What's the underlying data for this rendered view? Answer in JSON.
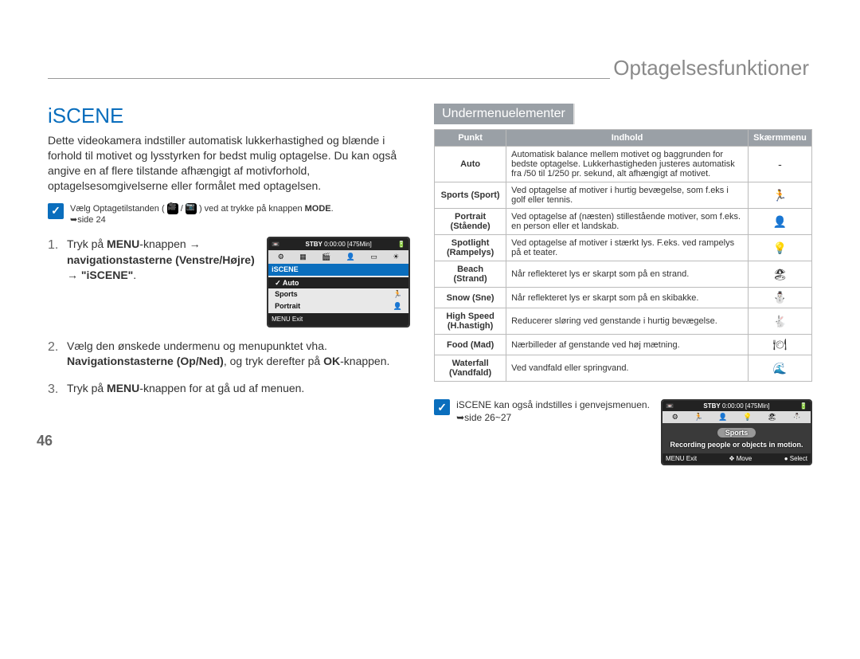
{
  "header": {
    "chapter": "Optagelsesfunktioner"
  },
  "section": {
    "title": "iSCENE",
    "intro": "Dette videokamera indstiller automatisk lukkerhastighed og blænde i forhold til motivet og lysstyrken for bedst mulig optagelse. Du kan også angive en af flere tilstande afhængigt af motivforhold, optagelsesomgivelserne eller formålet med optagelsen.",
    "precheck_pre": "Vælg Optagetilstanden (",
    "precheck_post": ") ved at trykke på knappen ",
    "precheck_mode": "MODE",
    "precheck_ref": "➥side 24"
  },
  "steps": {
    "s1a": "Tryk på ",
    "s1b": "MENU",
    "s1c": "-knappen ",
    "s1arrow": "→",
    "s1d": "navigationstasterne (Venstre/Højre)",
    "s1e": " → ",
    "s1f": "\"iSCENE\"",
    "s1g": ".",
    "s2a": "Vælg den ønskede undermenu og menupunktet vha.",
    "s2b": "Navigationstasterne (Op/Ned)",
    "s2c": ", og tryk derefter på ",
    "s2d": "OK",
    "s2e": "-knappen.",
    "s3a": "Tryk på ",
    "s3b": "MENU",
    "s3c": "-knappen for at gå ud af menuen."
  },
  "subheader": "Undermenuelementer",
  "table": {
    "headers": {
      "c1": "Punkt",
      "c2": "Indhold",
      "c3": "Skærmmenu"
    },
    "rows": [
      {
        "pt": "Auto",
        "desc": "Automatisk balance mellem motivet og baggrunden for bedste optagelse. Lukkerhastigheden justeres automatisk fra /50 til 1/250 pr. sekund, alt afhængigt af motivet.",
        "icon": "-"
      },
      {
        "pt": "Sports (Sport)",
        "desc": "Ved optagelse af motiver i hurtig bevægelse, som f.eks i golf eller tennis.",
        "icon": "🏃"
      },
      {
        "pt": "Portrait (Stående)",
        "desc": "Ved optagelse af (næsten) stillestående motiver, som f.eks. en person eller et landskab.",
        "icon": "👤"
      },
      {
        "pt": "Spotlight (Rampelys)",
        "desc": "Ved optagelse af motiver i stærkt lys. F.eks. ved rampelys på et teater.",
        "icon": "💡"
      },
      {
        "pt": "Beach (Strand)",
        "desc": "Når reflekteret lys er skarpt som på en strand.",
        "icon": "🏖"
      },
      {
        "pt": "Snow (Sne)",
        "desc": "Når reflekteret lys er skarpt som på en skibakke.",
        "icon": "⛄"
      },
      {
        "pt": "High Speed (H.hastigh)",
        "desc": "Reducerer sløring ved genstande i hurtig bevægelse.",
        "icon": "🐇"
      },
      {
        "pt": "Food (Mad)",
        "desc": "Nærbilleder af genstande ved høj mætning.",
        "icon": "🍽"
      },
      {
        "pt": "Waterfall (Vandfald)",
        "desc": "Ved vandfald eller springvand.",
        "icon": "🌊"
      }
    ]
  },
  "note2": {
    "text": "iSCENE kan også indstilles i genvejsmenuen. ➥side 26~27"
  },
  "lcd1": {
    "status_left": "STBY",
    "status_time": "0:00:00",
    "status_remain": "[475Min]",
    "menu": "iSCENE",
    "items": [
      "Auto",
      "Sports",
      "Portrait"
    ],
    "check": "✓",
    "exit": "MENU Exit"
  },
  "lcd2": {
    "status_left": "STBY",
    "status_time": "0:00:00",
    "status_remain": "[475Min]",
    "title": "Sports",
    "desc": "Recording people or objects in motion.",
    "exit": "MENU Exit",
    "move": "✥ Move",
    "select": "● Select"
  },
  "pagenum": "46",
  "colors": {
    "accent": "#0a6ebd",
    "grey_header": "#9aa0a6",
    "text": "#333333",
    "rule": "#999999"
  }
}
